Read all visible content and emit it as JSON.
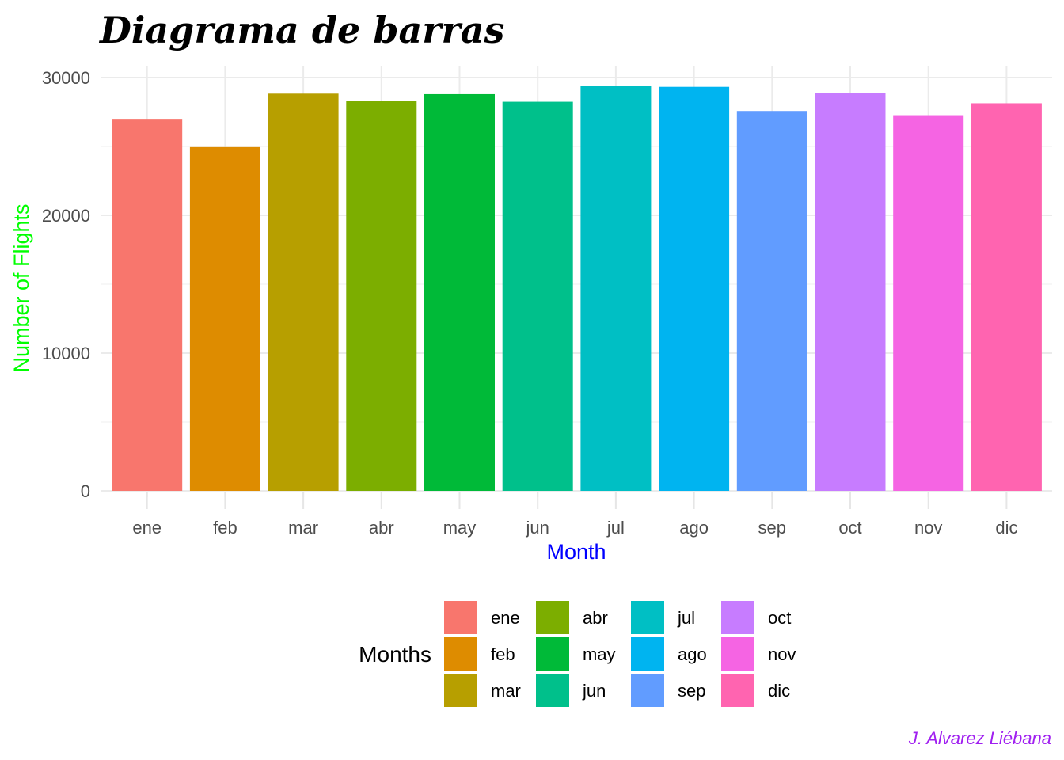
{
  "chart_data": {
    "type": "bar",
    "title": "Diagrama de barras",
    "xlabel": "Month",
    "ylabel": "Number of Flights",
    "categories": [
      "ene",
      "feb",
      "mar",
      "abr",
      "may",
      "jun",
      "jul",
      "ago",
      "sep",
      "oct",
      "nov",
      "dic"
    ],
    "values": [
      27004,
      24951,
      28834,
      28330,
      28796,
      28243,
      29425,
      29327,
      27574,
      28889,
      27268,
      28135
    ],
    "colors": [
      "#F8766D",
      "#DE8C00",
      "#B79F00",
      "#7CAE00",
      "#00BA38",
      "#00C08B",
      "#00BFC4",
      "#00B4F0",
      "#619CFF",
      "#C77CFF",
      "#F564E3",
      "#FF64B0"
    ],
    "ylim": [
      0,
      30000
    ],
    "yticks": [
      0,
      10000,
      20000,
      30000
    ],
    "ytick_labels": [
      "0",
      "10000",
      "20000",
      "30000"
    ],
    "grid": true,
    "legend": {
      "title": "Months",
      "position": "bottom"
    },
    "caption": "J. Alvarez Liébana",
    "title_color": "#000000",
    "xlabel_color": "#0000FF",
    "ylabel_color": "#00FF00",
    "caption_color": "#A020F0"
  }
}
